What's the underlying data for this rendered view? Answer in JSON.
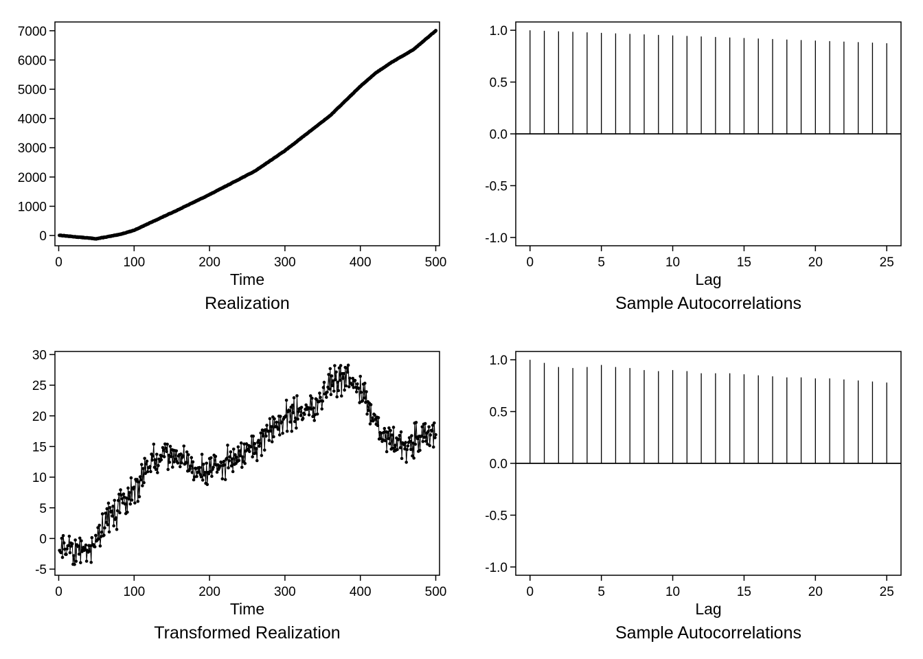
{
  "chart_data": [
    {
      "id": "realization",
      "type": "line",
      "title": "Realization",
      "xlabel": "Time",
      "ylabel": "",
      "xlim": [
        -5,
        505
      ],
      "ylim": [
        -350,
        7300
      ],
      "xticks": [
        0,
        100,
        200,
        300,
        400,
        500
      ],
      "yticks": [
        0,
        1000,
        2000,
        3000,
        4000,
        5000,
        6000,
        7000
      ],
      "markers": true,
      "n": 500,
      "anchor_x": [
        1,
        20,
        50,
        80,
        100,
        120,
        160,
        200,
        260,
        300,
        360,
        400,
        420,
        440,
        470,
        500
      ],
      "anchor_y": [
        10,
        -40,
        -110,
        30,
        180,
        420,
        900,
        1400,
        2200,
        2900,
        4100,
        5100,
        5550,
        5900,
        6350,
        7000
      ]
    },
    {
      "id": "acf1",
      "type": "bar",
      "title": "Sample Autocorrelations",
      "xlabel": "Lag",
      "ylabel": "",
      "xlim": [
        -1,
        26
      ],
      "ylim": [
        -1.08,
        1.08
      ],
      "xticks": [
        0,
        5,
        10,
        15,
        20,
        25
      ],
      "yticks": [
        -1.0,
        -0.5,
        0.0,
        0.5,
        1.0
      ],
      "ytick_labels": [
        "-1.0",
        "-0.5",
        "0.0",
        "0.5",
        "1.0"
      ],
      "lags": [
        0,
        1,
        2,
        3,
        4,
        5,
        6,
        7,
        8,
        9,
        10,
        11,
        12,
        13,
        14,
        15,
        16,
        17,
        18,
        19,
        20,
        21,
        22,
        23,
        24,
        25
      ],
      "values": [
        1.0,
        0.995,
        0.99,
        0.985,
        0.98,
        0.975,
        0.97,
        0.965,
        0.96,
        0.955,
        0.95,
        0.945,
        0.94,
        0.935,
        0.93,
        0.925,
        0.92,
        0.915,
        0.91,
        0.905,
        0.9,
        0.895,
        0.89,
        0.885,
        0.88,
        0.875
      ]
    },
    {
      "id": "transformed",
      "type": "line",
      "title": "Transformed Realization",
      "xlabel": "Time",
      "ylabel": "",
      "xlim": [
        -5,
        505
      ],
      "ylim": [
        -6,
        30.5
      ],
      "xticks": [
        0,
        100,
        200,
        300,
        400,
        500
      ],
      "yticks": [
        -5,
        0,
        5,
        10,
        15,
        20,
        25,
        30
      ],
      "markers": true,
      "n": 500,
      "anchor_x": [
        1,
        20,
        40,
        60,
        80,
        100,
        120,
        140,
        160,
        180,
        200,
        230,
        260,
        290,
        320,
        340,
        360,
        380,
        400,
        420,
        440,
        460,
        480,
        500
      ],
      "anchor_y": [
        -1.5,
        -2,
        -2,
        2,
        5,
        8,
        12,
        14,
        13.5,
        11,
        11,
        13,
        15,
        19,
        21,
        21,
        25,
        26.5,
        24,
        19,
        16,
        15,
        16.5,
        17
      ],
      "noise": 1.7
    },
    {
      "id": "acf2",
      "type": "bar",
      "title": "Sample Autocorrelations",
      "xlabel": "Lag",
      "ylabel": "",
      "xlim": [
        -1,
        26
      ],
      "ylim": [
        -1.08,
        1.08
      ],
      "xticks": [
        0,
        5,
        10,
        15,
        20,
        25
      ],
      "yticks": [
        -1.0,
        -0.5,
        0.0,
        0.5,
        1.0
      ],
      "ytick_labels": [
        "-1.0",
        "-0.5",
        "0.0",
        "0.5",
        "1.0"
      ],
      "lags": [
        0,
        1,
        2,
        3,
        4,
        5,
        6,
        7,
        8,
        9,
        10,
        11,
        12,
        13,
        14,
        15,
        16,
        17,
        18,
        19,
        20,
        21,
        22,
        23,
        24,
        25
      ],
      "values": [
        1.0,
        0.97,
        0.93,
        0.92,
        0.93,
        0.95,
        0.93,
        0.92,
        0.9,
        0.89,
        0.9,
        0.89,
        0.87,
        0.87,
        0.87,
        0.86,
        0.85,
        0.84,
        0.83,
        0.83,
        0.82,
        0.82,
        0.81,
        0.8,
        0.79,
        0.78
      ]
    }
  ]
}
